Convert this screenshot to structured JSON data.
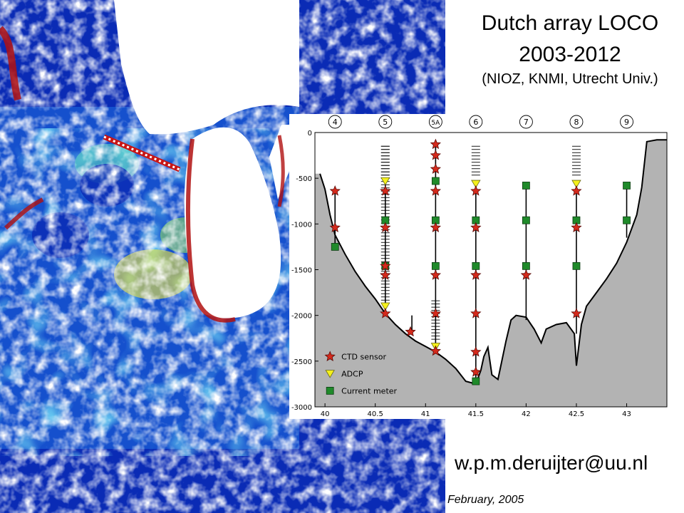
{
  "header": {
    "title_line1": "Dutch array LOCO",
    "title_line2": "2003-2012",
    "title_line3": "(NIOZ, KNMI, Utrecht Univ.)"
  },
  "footer": {
    "email": "w.p.m.deruijter@uu.nl",
    "date": "February, 2005"
  },
  "colors": {
    "land_white": "#ffffff",
    "deep_blue": "#0a2bb5",
    "cyan": "#31c6e8",
    "yellow": "#f2ea40",
    "red_coast": "#b01010",
    "bathymetry_gray": "#b3b3b3",
    "cast_star": "#d42a1c",
    "adcp_yellow": "#f4f01c",
    "meter_green": "#1f8a2a"
  },
  "chart_data": {
    "type": "diagram",
    "xlabel": "",
    "ylabel": "",
    "xlim": [
      39.9,
      43.4
    ],
    "ylim": [
      -3000,
      0
    ],
    "xticks": [
      40,
      40.5,
      41,
      41.5,
      42,
      42.5,
      43
    ],
    "xtick_labels": [
      "40",
      "40.5",
      "41",
      "41.5",
      "42",
      "42.5",
      "43"
    ],
    "yticks": [
      0,
      -500,
      -1000,
      -1500,
      -2000,
      -2500,
      -3000
    ],
    "ytick_labels": [
      "0",
      "-500",
      "-1000",
      "-1500",
      "-2000",
      "-2500",
      "-3000"
    ],
    "legend": {
      "placement": "bottom-left",
      "entries": [
        {
          "label": "CTD sensor",
          "marker": "star"
        },
        {
          "label": "ADCP",
          "marker": "triangle"
        },
        {
          "label": "Current meter",
          "marker": "square"
        }
      ]
    },
    "bathymetry": [
      [
        39.95,
        -450
      ],
      [
        40.0,
        -620
      ],
      [
        40.05,
        -900
      ],
      [
        40.1,
        -1120
      ],
      [
        40.2,
        -1330
      ],
      [
        40.3,
        -1520
      ],
      [
        40.4,
        -1680
      ],
      [
        40.5,
        -1820
      ],
      [
        40.6,
        -1980
      ],
      [
        40.7,
        -2100
      ],
      [
        40.8,
        -2200
      ],
      [
        40.9,
        -2280
      ],
      [
        41.0,
        -2340
      ],
      [
        41.1,
        -2400
      ],
      [
        41.2,
        -2480
      ],
      [
        41.3,
        -2580
      ],
      [
        41.4,
        -2720
      ],
      [
        41.5,
        -2750
      ],
      [
        41.55,
        -2600
      ],
      [
        41.58,
        -2450
      ],
      [
        41.62,
        -2350
      ],
      [
        41.66,
        -2650
      ],
      [
        41.72,
        -2700
      ],
      [
        41.8,
        -2280
      ],
      [
        41.85,
        -2050
      ],
      [
        41.9,
        -2000
      ],
      [
        42.0,
        -2020
      ],
      [
        42.08,
        -2150
      ],
      [
        42.15,
        -2300
      ],
      [
        42.2,
        -2150
      ],
      [
        42.3,
        -2100
      ],
      [
        42.4,
        -2080
      ],
      [
        42.48,
        -2200
      ],
      [
        42.5,
        -2550
      ],
      [
        42.55,
        -2100
      ],
      [
        42.6,
        -1900
      ],
      [
        42.7,
        -1750
      ],
      [
        42.8,
        -1600
      ],
      [
        42.9,
        -1430
      ],
      [
        43.0,
        -1200
      ],
      [
        43.1,
        -900
      ],
      [
        43.15,
        -600
      ],
      [
        43.2,
        -100
      ],
      [
        43.3,
        -80
      ],
      [
        43.4,
        -80
      ]
    ],
    "moorings": [
      {
        "name": "4",
        "x": 40.1,
        "bottom": -1250,
        "top": -640,
        "ctd": [
          -640,
          -1040
        ],
        "adcp": [],
        "meters": [
          -1250
        ],
        "levels_top": null
      },
      {
        "name": "5",
        "x": 40.6,
        "bottom": -1980,
        "top": -550,
        "ctd": [
          -640,
          -1040,
          -1460,
          -1560,
          -1980
        ],
        "adcp": [
          -530,
          -1900
        ],
        "meters": [
          -960,
          -1460
        ],
        "levels_top": -150
      },
      {
        "name": "5A",
        "x": 41.1,
        "bottom": -2390,
        "top": -130,
        "ctd": [
          -130,
          -250,
          -400,
          -640,
          -1040,
          -1560,
          -1980,
          -2390
        ],
        "adcp": [
          -2340
        ],
        "meters": [
          -530,
          -960,
          -1460
        ],
        "levels_top": -1850
      },
      {
        "name": "6",
        "x": 41.5,
        "bottom": -2720,
        "top": -560,
        "ctd": [
          -640,
          -1040,
          -1560,
          -1980,
          -2400,
          -2620
        ],
        "adcp": [
          -560
        ],
        "meters": [
          -960,
          -1460,
          -2720
        ],
        "levels_top": -150
      },
      {
        "name": "7",
        "x": 42.0,
        "bottom": -2050,
        "top": -580,
        "ctd": [
          -1560
        ],
        "adcp": [],
        "meters": [
          -580,
          -960,
          -1460
        ],
        "levels_top": null
      },
      {
        "name": "8",
        "x": 42.5,
        "bottom": -2200,
        "top": -560,
        "ctd": [
          -640,
          -1040,
          -1980
        ],
        "adcp": [
          -560
        ],
        "meters": [
          -960,
          -1460
        ],
        "levels_top": -150
      },
      {
        "name": "9",
        "x": 43.0,
        "bottom": -1150,
        "top": -580,
        "ctd": [],
        "adcp": [],
        "meters": [
          -580,
          -960
        ],
        "levels_top": null
      }
    ],
    "extra_ctd": [
      {
        "x": 40.85,
        "y": -2180,
        "top": -2000
      }
    ]
  }
}
